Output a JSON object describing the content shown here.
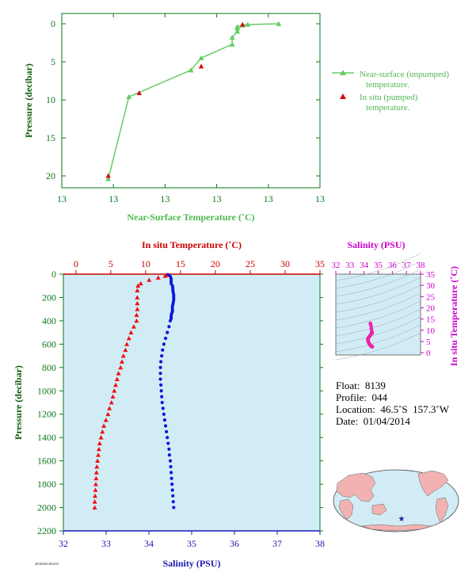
{
  "colors": {
    "top_axis": "#0b7a1a",
    "top_series": "#66cc66",
    "pumped": "#dd0000",
    "temp": "#ee1111",
    "sal": "#0a14d8",
    "sal_axis": "#1a1ab0",
    "temp_axis": "#cc0000",
    "panel_bg": "#d2ecf6",
    "pressure_label": "#0b5a0b",
    "ts_color": "#ee22aa",
    "ts_title": "#cc00cc",
    "land": "#f2b2b2",
    "ocean": "#d2ecf6"
  },
  "chart_data": [
    {
      "type": "line",
      "title": "",
      "xlabel": "Near-Surface Temperature (˚C)",
      "ylabel": "Pressure (decibar)",
      "xtick_labels": [
        "13",
        "13",
        "13",
        "13",
        "13",
        "13"
      ],
      "yticks": [
        0,
        5,
        10,
        15,
        20
      ],
      "ylim": [
        0,
        22
      ],
      "y_inverted": true,
      "legend": {
        "placement": "right",
        "entries": [
          {
            "label_line1": "Near-surface (unpumped)",
            "label_line2": "temperature."
          },
          {
            "label_line1": "In situ (pumped)",
            "label_line2": "temperature."
          }
        ]
      },
      "series": [
        {
          "name": "Near-surface (unpumped) temperature.",
          "points": [
            [
              13.42,
              0.0
            ],
            [
              13.36,
              0.1
            ],
            [
              13.35,
              0.2
            ],
            [
              13.34,
              0.4
            ],
            [
              13.34,
              0.6
            ],
            [
              13.34,
              1.0
            ],
            [
              13.33,
              1.8
            ],
            [
              13.33,
              2.7
            ],
            [
              13.27,
              4.5
            ],
            [
              13.25,
              6.1
            ],
            [
              13.13,
              9.6
            ],
            [
              13.09,
              20.4
            ]
          ]
        },
        {
          "name": "In situ (pumped) temperature.",
          "points": [
            [
              13.35,
              0.1
            ],
            [
              13.27,
              5.6
            ],
            [
              13.15,
              9.1
            ],
            [
              13.09,
              20.0
            ]
          ]
        }
      ]
    },
    {
      "type": "scatter",
      "title": "",
      "top_axis_label": "In situ Temperature (˚C)",
      "bottom_axis_label": "Salinity (PSU)",
      "ylabel": "Pressure (decibar)",
      "temp_ticks": [
        0,
        5,
        10,
        15,
        20,
        25,
        30,
        35
      ],
      "sal_ticks": [
        32,
        33,
        34,
        35,
        36,
        37,
        38
      ],
      "pressure_ticks": [
        0,
        200,
        400,
        600,
        800,
        1000,
        1200,
        1400,
        1600,
        1800,
        2000,
        2200
      ],
      "ylim": [
        0,
        2200
      ],
      "y_inverted": true,
      "series": [
        {
          "name": "In situ Temperature",
          "marker": "triangle",
          "points": [
            [
              13.0,
              5
            ],
            [
              12.8,
              15
            ],
            [
              11.8,
              30
            ],
            [
              10.5,
              50
            ],
            [
              9.3,
              80
            ],
            [
              8.9,
              100
            ],
            [
              8.8,
              140
            ],
            [
              8.8,
              200
            ],
            [
              8.8,
              250
            ],
            [
              8.8,
              300
            ],
            [
              8.7,
              350
            ],
            [
              8.7,
              400
            ],
            [
              8.3,
              450
            ],
            [
              7.9,
              500
            ],
            [
              7.6,
              550
            ],
            [
              7.3,
              600
            ],
            [
              7.1,
              650
            ],
            [
              6.8,
              700
            ],
            [
              6.6,
              750
            ],
            [
              6.4,
              800
            ],
            [
              6.1,
              850
            ],
            [
              5.9,
              900
            ],
            [
              5.7,
              950
            ],
            [
              5.5,
              1000
            ],
            [
              5.3,
              1050
            ],
            [
              5.1,
              1100
            ],
            [
              4.8,
              1150
            ],
            [
              4.6,
              1200
            ],
            [
              4.3,
              1250
            ],
            [
              4.0,
              1300
            ],
            [
              3.8,
              1350
            ],
            [
              3.6,
              1400
            ],
            [
              3.4,
              1450
            ],
            [
              3.3,
              1500
            ],
            [
              3.2,
              1550
            ],
            [
              3.1,
              1600
            ],
            [
              3.0,
              1650
            ],
            [
              2.95,
              1700
            ],
            [
              2.9,
              1750
            ],
            [
              2.85,
              1800
            ],
            [
              2.8,
              1850
            ],
            [
              2.75,
              1900
            ],
            [
              2.7,
              1950
            ],
            [
              2.7,
              2000
            ]
          ]
        },
        {
          "name": "Salinity",
          "marker": "circle",
          "points": [
            [
              34.45,
              5
            ],
            [
              34.5,
              20
            ],
            [
              34.52,
              40
            ],
            [
              34.52,
              60
            ],
            [
              34.52,
              80
            ],
            [
              34.55,
              100
            ],
            [
              34.56,
              120
            ],
            [
              34.56,
              140
            ],
            [
              34.57,
              160
            ],
            [
              34.58,
              180
            ],
            [
              34.58,
              200
            ],
            [
              34.58,
              220
            ],
            [
              34.57,
              240
            ],
            [
              34.56,
              260
            ],
            [
              34.55,
              280
            ],
            [
              34.55,
              300
            ],
            [
              34.55,
              320
            ],
            [
              34.53,
              340
            ],
            [
              34.52,
              360
            ],
            [
              34.52,
              380
            ],
            [
              34.5,
              400
            ],
            [
              34.47,
              450
            ],
            [
              34.43,
              500
            ],
            [
              34.39,
              550
            ],
            [
              34.35,
              600
            ],
            [
              34.32,
              650
            ],
            [
              34.3,
              700
            ],
            [
              34.28,
              750
            ],
            [
              34.27,
              800
            ],
            [
              34.27,
              850
            ],
            [
              34.27,
              900
            ],
            [
              34.28,
              950
            ],
            [
              34.29,
              1000
            ],
            [
              34.3,
              1050
            ],
            [
              34.31,
              1100
            ],
            [
              34.33,
              1150
            ],
            [
              34.35,
              1200
            ],
            [
              34.37,
              1250
            ],
            [
              34.39,
              1300
            ],
            [
              34.41,
              1350
            ],
            [
              34.43,
              1400
            ],
            [
              34.45,
              1450
            ],
            [
              34.47,
              1500
            ],
            [
              34.48,
              1550
            ],
            [
              34.5,
              1600
            ],
            [
              34.51,
              1650
            ],
            [
              34.52,
              1700
            ],
            [
              34.53,
              1750
            ],
            [
              34.54,
              1800
            ],
            [
              34.55,
              1850
            ],
            [
              34.56,
              1900
            ],
            [
              34.57,
              1950
            ],
            [
              34.58,
              2000
            ]
          ]
        }
      ]
    },
    {
      "type": "scatter",
      "title": "Salinity (PSU)",
      "ylabel": "In situ Temperature (˚C)",
      "sal_ticks": [
        32,
        33,
        34,
        35,
        36,
        37,
        38
      ],
      "temp_ticks": [
        0,
        5,
        10,
        15,
        20,
        25,
        30,
        35
      ],
      "series": [
        {
          "name": "T-S",
          "points": [
            [
              34.45,
              13.0
            ],
            [
              34.5,
              11.8
            ],
            [
              34.52,
              10.5
            ],
            [
              34.55,
              9.3
            ],
            [
              34.56,
              8.8
            ],
            [
              34.57,
              8.8
            ],
            [
              34.55,
              8.7
            ],
            [
              34.5,
              8.3
            ],
            [
              34.43,
              7.6
            ],
            [
              34.35,
              7.0
            ],
            [
              34.3,
              6.5
            ],
            [
              34.27,
              6.0
            ],
            [
              34.28,
              5.5
            ],
            [
              34.3,
              5.0
            ],
            [
              34.33,
              4.5
            ],
            [
              34.37,
              4.0
            ],
            [
              34.41,
              3.6
            ],
            [
              34.45,
              3.3
            ],
            [
              34.48,
              3.1
            ],
            [
              34.51,
              2.95
            ],
            [
              34.54,
              2.85
            ],
            [
              34.56,
              2.75
            ],
            [
              34.58,
              2.7
            ]
          ]
        }
      ]
    }
  ],
  "info": {
    "float": "Float:  8139",
    "profile": "Profile:  044",
    "location": "Location:  46.5˚S  157.3˚W",
    "date": "Date:  01/04/2014"
  },
  "footer_text": "20140104 2014-01"
}
